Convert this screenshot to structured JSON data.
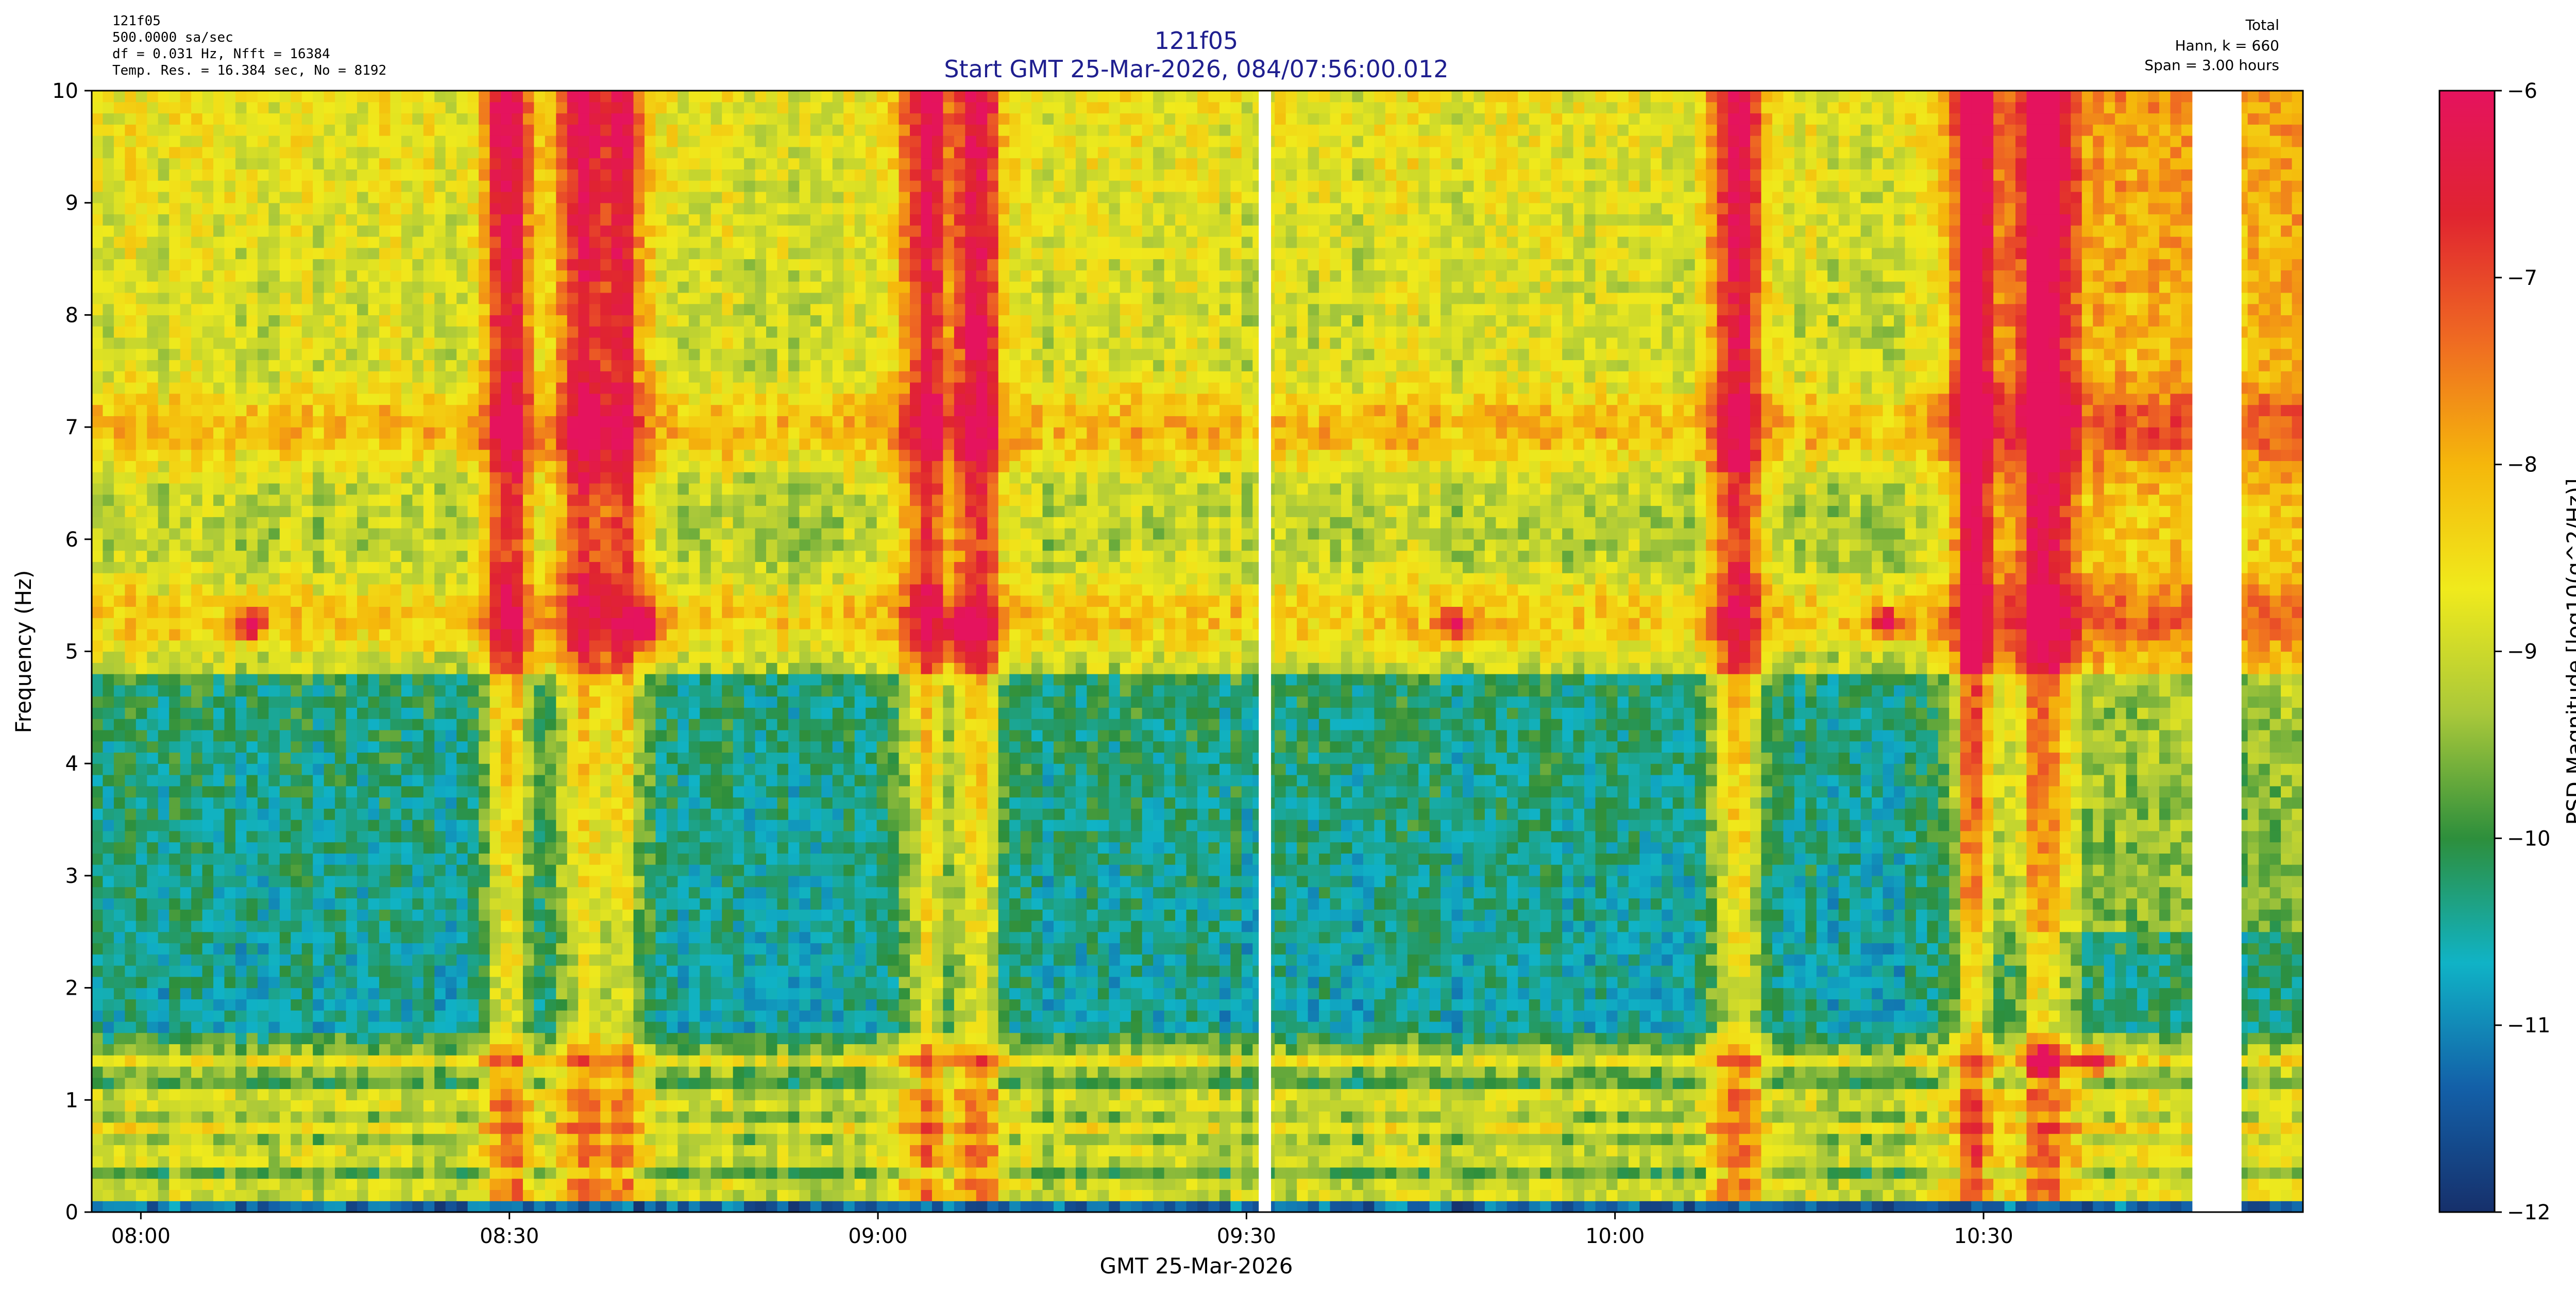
{
  "header_left": [
    "121f05",
    "500.0000 sa/sec",
    "df = 0.031 Hz,  Nfft = 16384",
    "Temp. Res. = 16.384 sec, No = 8192"
  ],
  "header_right": [
    "Total",
    "Hann, k = 660",
    "Span = 3.00 hours"
  ],
  "title_lines": [
    "121f05",
    "Start GMT 25-Mar-2026, 084/07:56:00.012"
  ],
  "chart_data": {
    "type": "heatmap",
    "xlabel": "GMT 25-Mar-2026",
    "ylabel": "Frequency (Hz)",
    "colorbar_label": "PSD Magnitude [log10(g^2/Hz)]",
    "x_range": [
      "07:56:00",
      "10:56:00"
    ],
    "x_ticks": [
      "08:00",
      "08:30",
      "09:00",
      "09:30",
      "10:00",
      "10:30"
    ],
    "ylim": [
      0,
      10
    ],
    "y_ticks": [
      0,
      1,
      2,
      3,
      4,
      5,
      6,
      7,
      8,
      9,
      10
    ],
    "clim": [
      -12,
      -6
    ],
    "colorbar_ticks": [
      -12,
      -11,
      -10,
      -9,
      -8,
      -7,
      -6
    ],
    "colormap": [
      "#16306b",
      "#1360a8",
      "#10b3c6",
      "#2d8f3c",
      "#a9c83a",
      "#f0ea1c",
      "#f5b70b",
      "#ef6a22",
      "#e02430",
      "#e5135e"
    ],
    "data_gaps": [
      [
        "09:31",
        "09:32"
      ],
      [
        "10:47",
        "10:51"
      ]
    ],
    "persistent_bands_hz": [
      0.2,
      0.5,
      0.75,
      1.0,
      1.35,
      5.3,
      7.0
    ],
    "broadband_events": [
      "08:30",
      "08:36",
      "08:39",
      "09:04",
      "09:08",
      "10:10",
      "10:29",
      "10:35"
    ],
    "localized_peaks": [
      {
        "time": "08:09",
        "freq_hz": 5.25
      },
      {
        "time": "08:41",
        "freq_hz": 5.25
      },
      {
        "time": "09:07",
        "freq_hz": 5.2
      },
      {
        "time": "09:08",
        "freq_hz": 7.85
      },
      {
        "time": "09:47",
        "freq_hz": 5.25
      },
      {
        "time": "10:22",
        "freq_hz": 5.25
      },
      {
        "time": "10:35",
        "freq_hz": 1.35
      },
      {
        "time": "10:39",
        "freq_hz": 1.35
      }
    ]
  }
}
